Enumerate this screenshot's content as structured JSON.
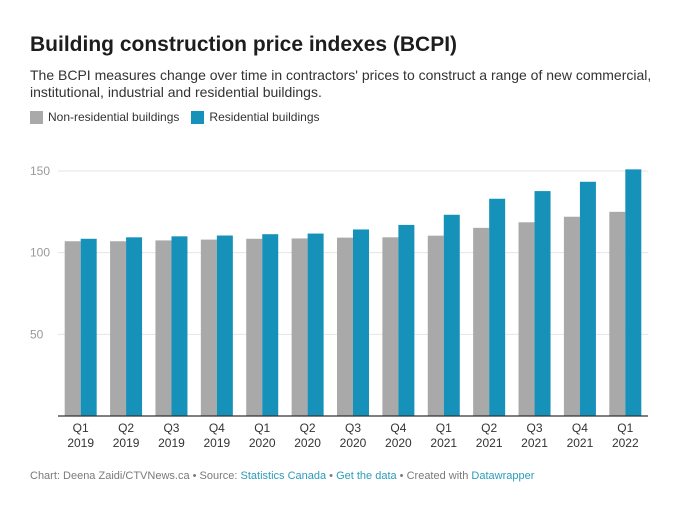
{
  "title": "Building construction price indexes (BCPI)",
  "subtitle": "The BCPI measures change over time in contractors' prices to construct a range of new commercial, institutional, industrial and residential buildings.",
  "footer": {
    "prefix": "Chart: Deena Zaidi/CTVNews.ca • Source: ",
    "source_link": "Statistics Canada",
    "sep1": " • ",
    "data_link": "Get the data",
    "sep2": " • Created with ",
    "tool_link": "Datawrapper"
  },
  "colors": {
    "non_residential": "#a9a9a9",
    "residential": "#1691b9",
    "gridline": "#e4e4e4",
    "axis": "#333333",
    "tick_text": "#999999",
    "link": "#2d9cb8"
  },
  "chart_data": {
    "type": "bar",
    "categories": [
      [
        "Q1",
        "2019"
      ],
      [
        "Q2",
        "2019"
      ],
      [
        "Q3",
        "2019"
      ],
      [
        "Q4",
        "2019"
      ],
      [
        "Q1",
        "2020"
      ],
      [
        "Q2",
        "2020"
      ],
      [
        "Q3",
        "2020"
      ],
      [
        "Q4",
        "2020"
      ],
      [
        "Q1",
        "2021"
      ],
      [
        "Q2",
        "2021"
      ],
      [
        "Q3",
        "2021"
      ],
      [
        "Q4",
        "2021"
      ],
      [
        "Q1",
        "2022"
      ]
    ],
    "series": [
      {
        "name": "Non-residential buildings",
        "color": "#a9a9a9",
        "values": [
          107.0,
          107.0,
          107.5,
          108.0,
          108.5,
          108.7,
          109.2,
          109.4,
          110.4,
          115.2,
          118.6,
          122.0,
          125.0
        ]
      },
      {
        "name": "Residential buildings",
        "color": "#1691b9",
        "values": [
          108.5,
          109.4,
          110.0,
          110.5,
          111.3,
          111.7,
          114.2,
          117.0,
          123.2,
          133.0,
          137.7,
          143.4,
          151.0
        ]
      }
    ],
    "ylim": [
      0,
      150
    ],
    "yticks": [
      50,
      100,
      150
    ],
    "grid": true,
    "legend_position": "top-left"
  }
}
